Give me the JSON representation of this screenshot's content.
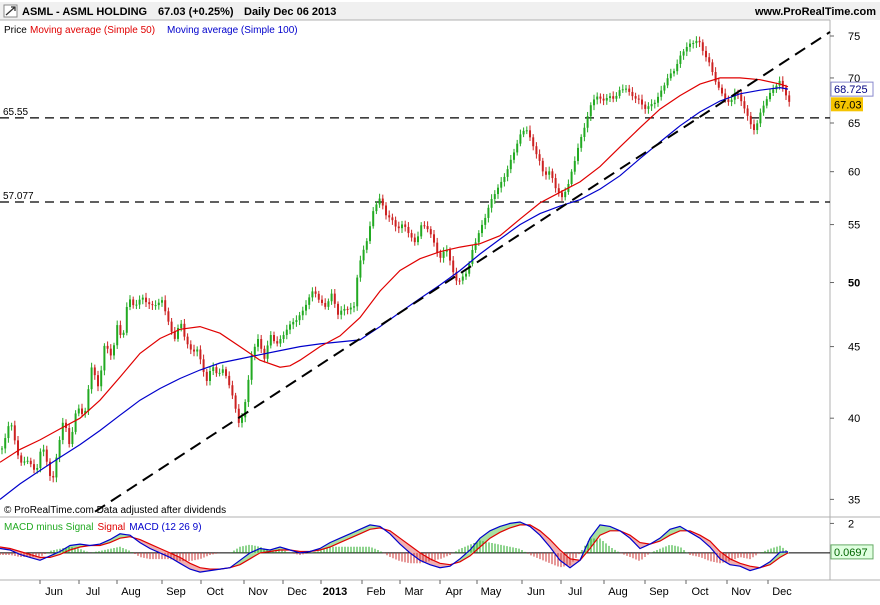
{
  "header": {
    "ticker": "ASML - ASML HOLDING",
    "quote": "67.03 (+0.25%)",
    "period": "Daily  Dec 06 2013",
    "site": "www.ProRealTime.com"
  },
  "legend": {
    "price": "Price",
    "ma50": "Moving average (Simple 50)",
    "ma100": "Moving average (Simple 100)"
  },
  "copyright": "© ProRealTime.com  Data adjusted after dividends",
  "macd_legend": {
    "hist": "MACD minus Signal",
    "signal": "Signal",
    "macd": "MACD (12 26 9)"
  },
  "colors": {
    "up": "#22aa22",
    "down": "#cc2222",
    "ma50": "#e00000",
    "ma100": "#0000cc",
    "trend": "#000000",
    "last_price_bg": "#f5c400",
    "macd_value_bg": "#e0ffe0"
  },
  "chart_data": {
    "type": "candlestick",
    "instrument": "ASML - ASML HOLDING",
    "timeframe": "Daily",
    "y_scale": "log",
    "ylim": [
      34,
      77
    ],
    "y_ticks": [
      35,
      40,
      45,
      50,
      55,
      60,
      65,
      70,
      75
    ],
    "y_ticks_bold": [
      50
    ],
    "x_month_labels": [
      "Jun",
      "Jul",
      "Aug",
      "Sep",
      "Oct",
      "Nov",
      "Dec",
      "2013",
      "Feb",
      "Mar",
      "Apr",
      "May",
      "Jun",
      "Jul",
      "Aug",
      "Sep",
      "Oct",
      "Nov",
      "Dec"
    ],
    "x_label_bold": "2013",
    "price_path": [
      [
        0,
        38.0
      ],
      [
        8,
        40.0
      ],
      [
        18,
        37.0
      ],
      [
        26,
        37.4
      ],
      [
        34,
        36.6
      ],
      [
        40,
        38.2
      ],
      [
        45,
        37.2
      ],
      [
        50,
        35.8
      ],
      [
        54,
        37.5
      ],
      [
        62,
        40.0
      ],
      [
        68,
        38.0
      ],
      [
        75,
        41.0
      ],
      [
        82,
        40.0
      ],
      [
        90,
        43.5
      ],
      [
        97,
        42.0
      ],
      [
        103,
        45.5
      ],
      [
        110,
        44.0
      ],
      [
        116,
        47.0
      ],
      [
        120,
        45.0
      ],
      [
        126,
        49.0
      ],
      [
        132,
        48.0
      ],
      [
        140,
        48.7
      ],
      [
        150,
        48.2
      ],
      [
        160,
        48.4
      ],
      [
        166,
        47.0
      ],
      [
        172,
        45.5
      ],
      [
        178,
        47.0
      ],
      [
        183,
        45.5
      ],
      [
        190,
        44.5
      ],
      [
        196,
        45.0
      ],
      [
        200,
        43.5
      ],
      [
        205,
        42.5
      ],
      [
        210,
        43.5
      ],
      [
        216,
        43.0
      ],
      [
        222,
        43.5
      ],
      [
        228,
        42.0
      ],
      [
        234,
        40.5
      ],
      [
        238,
        39.3
      ],
      [
        244,
        41.5
      ],
      [
        250,
        44.5
      ],
      [
        256,
        45.5
      ],
      [
        262,
        44.0
      ],
      [
        268,
        46.0
      ],
      [
        274,
        45.2
      ],
      [
        280,
        45.5
      ],
      [
        286,
        46.5
      ],
      [
        292,
        47.0
      ],
      [
        300,
        47.5
      ],
      [
        306,
        48.5
      ],
      [
        312,
        49.5
      ],
      [
        318,
        48.5
      ],
      [
        324,
        48.0
      ],
      [
        330,
        49.0
      ],
      [
        336,
        47.5
      ],
      [
        342,
        48.0
      ],
      [
        348,
        47.8
      ],
      [
        352,
        48.0
      ],
      [
        356,
        51.0
      ],
      [
        362,
        53.0
      ],
      [
        366,
        54.0
      ],
      [
        372,
        56.5
      ],
      [
        378,
        57.3
      ],
      [
        384,
        56.0
      ],
      [
        390,
        55.5
      ],
      [
        396,
        54.5
      ],
      [
        402,
        55.0
      ],
      [
        408,
        54.0
      ],
      [
        414,
        53.5
      ],
      [
        420,
        55.0
      ],
      [
        426,
        54.5
      ],
      [
        432,
        53.5
      ],
      [
        438,
        52.0
      ],
      [
        444,
        53.0
      ],
      [
        450,
        51.0
      ],
      [
        456,
        50.0
      ],
      [
        460,
        50.5
      ],
      [
        466,
        51.0
      ],
      [
        470,
        52.5
      ],
      [
        476,
        54.0
      ],
      [
        482,
        55.5
      ],
      [
        488,
        57.0
      ],
      [
        494,
        58.0
      ],
      [
        500,
        59.0
      ],
      [
        506,
        60.5
      ],
      [
        512,
        62.0
      ],
      [
        518,
        63.5
      ],
      [
        524,
        64.5
      ],
      [
        530,
        63.0
      ],
      [
        536,
        61.5
      ],
      [
        542,
        59.5
      ],
      [
        548,
        60.0
      ],
      [
        554,
        58.5
      ],
      [
        560,
        57.5
      ],
      [
        566,
        58.5
      ],
      [
        570,
        60.0
      ],
      [
        576,
        62.5
      ],
      [
        582,
        64.5
      ],
      [
        588,
        66.5
      ],
      [
        594,
        68.0
      ],
      [
        600,
        67.5
      ],
      [
        606,
        68.0
      ],
      [
        612,
        67.5
      ],
      [
        618,
        68.5
      ],
      [
        624,
        69.0
      ],
      [
        630,
        68.0
      ],
      [
        636,
        67.5
      ],
      [
        642,
        66.5
      ],
      [
        648,
        67.0
      ],
      [
        654,
        67.5
      ],
      [
        660,
        68.5
      ],
      [
        666,
        70.0
      ],
      [
        672,
        71.0
      ],
      [
        678,
        72.5
      ],
      [
        684,
        73.5
      ],
      [
        690,
        74.0
      ],
      [
        696,
        74.8
      ],
      [
        700,
        73.5
      ],
      [
        706,
        72.0
      ],
      [
        712,
        70.0
      ],
      [
        716,
        69.0
      ],
      [
        722,
        68.0
      ],
      [
        728,
        67.0
      ],
      [
        734,
        68.5
      ],
      [
        738,
        67.5
      ],
      [
        744,
        66.5
      ],
      [
        748,
        65.0
      ],
      [
        752,
        64.3
      ],
      [
        756,
        65.0
      ],
      [
        760,
        66.5
      ],
      [
        766,
        68.0
      ],
      [
        772,
        69.0
      ],
      [
        778,
        69.5
      ],
      [
        784,
        68.0
      ],
      [
        788,
        67.03
      ]
    ],
    "ma50": [
      [
        0,
        37.2
      ],
      [
        20,
        38.0
      ],
      [
        40,
        38.6
      ],
      [
        60,
        39.3
      ],
      [
        80,
        40.0
      ],
      [
        100,
        41.2
      ],
      [
        120,
        42.8
      ],
      [
        140,
        44.5
      ],
      [
        160,
        45.6
      ],
      [
        180,
        46.3
      ],
      [
        200,
        46.5
      ],
      [
        220,
        46.0
      ],
      [
        240,
        45.0
      ],
      [
        260,
        44.0
      ],
      [
        280,
        43.5
      ],
      [
        290,
        43.6
      ],
      [
        300,
        44.0
      ],
      [
        320,
        45.0
      ],
      [
        340,
        45.8
      ],
      [
        360,
        47.2
      ],
      [
        380,
        49.3
      ],
      [
        400,
        51.0
      ],
      [
        420,
        52.0
      ],
      [
        440,
        52.6
      ],
      [
        460,
        53.0
      ],
      [
        480,
        53.3
      ],
      [
        500,
        54.0
      ],
      [
        520,
        55.5
      ],
      [
        540,
        57.0
      ],
      [
        560,
        58.0
      ],
      [
        580,
        59.0
      ],
      [
        600,
        60.5
      ],
      [
        620,
        62.5
      ],
      [
        640,
        64.5
      ],
      [
        660,
        66.5
      ],
      [
        680,
        68.0
      ],
      [
        700,
        69.3
      ],
      [
        720,
        70.0
      ],
      [
        740,
        70.0
      ],
      [
        760,
        69.8
      ],
      [
        780,
        69.3
      ],
      [
        788,
        69.0
      ]
    ],
    "ma100": [
      [
        0,
        35.0
      ],
      [
        20,
        35.9
      ],
      [
        40,
        36.7
      ],
      [
        60,
        37.5
      ],
      [
        80,
        38.3
      ],
      [
        100,
        39.2
      ],
      [
        120,
        40.2
      ],
      [
        140,
        41.2
      ],
      [
        160,
        42.0
      ],
      [
        180,
        42.7
      ],
      [
        200,
        43.3
      ],
      [
        220,
        43.8
      ],
      [
        240,
        44.1
      ],
      [
        260,
        44.4
      ],
      [
        280,
        44.7
      ],
      [
        300,
        45.0
      ],
      [
        320,
        45.2
      ],
      [
        340,
        45.35
      ],
      [
        360,
        45.5
      ],
      [
        380,
        46.5
      ],
      [
        400,
        47.6
      ],
      [
        420,
        48.7
      ],
      [
        440,
        49.8
      ],
      [
        460,
        51.0
      ],
      [
        480,
        52.4
      ],
      [
        500,
        53.7
      ],
      [
        520,
        55.0
      ],
      [
        540,
        56.0
      ],
      [
        560,
        56.7
      ],
      [
        580,
        57.3
      ],
      [
        600,
        58.3
      ],
      [
        620,
        59.6
      ],
      [
        640,
        61.3
      ],
      [
        660,
        63.0
      ],
      [
        680,
        64.7
      ],
      [
        700,
        66.2
      ],
      [
        720,
        67.4
      ],
      [
        740,
        68.2
      ],
      [
        760,
        68.6
      ],
      [
        780,
        68.9
      ],
      [
        788,
        68.725
      ]
    ],
    "trendline": {
      "from": [
        95,
        34.3
      ],
      "to": [
        830,
        75.5
      ]
    },
    "support_levels": [
      65.55,
      57.077
    ],
    "last_price": 67.03,
    "ma100_last": 68.725,
    "macd": {
      "params": "12 26 9",
      "ylim": [
        -1.7,
        2.3
      ],
      "y_ticks": [
        2
      ],
      "last_value": 0.0697,
      "macd_path": [
        [
          0,
          0.3
        ],
        [
          10,
          0.2
        ],
        [
          20,
          -0.1
        ],
        [
          30,
          -0.3
        ],
        [
          40,
          -0.5
        ],
        [
          50,
          -0.2
        ],
        [
          60,
          0.1
        ],
        [
          70,
          0.5
        ],
        [
          80,
          0.6
        ],
        [
          90,
          0.5
        ],
        [
          100,
          0.6
        ],
        [
          110,
          0.9
        ],
        [
          120,
          1.3
        ],
        [
          130,
          1.2
        ],
        [
          140,
          0.7
        ],
        [
          150,
          0.3
        ],
        [
          160,
          0.0
        ],
        [
          170,
          -0.3
        ],
        [
          180,
          -0.7
        ],
        [
          190,
          -1.1
        ],
        [
          200,
          -1.3
        ],
        [
          210,
          -1.2
        ],
        [
          220,
          -1.1
        ],
        [
          230,
          -1.0
        ],
        [
          240,
          -0.5
        ],
        [
          250,
          0.0
        ],
        [
          260,
          0.3
        ],
        [
          270,
          0.2
        ],
        [
          280,
          0.4
        ],
        [
          290,
          0.2
        ],
        [
          300,
          0.0
        ],
        [
          310,
          0.1
        ],
        [
          320,
          0.3
        ],
        [
          330,
          0.7
        ],
        [
          340,
          1.0
        ],
        [
          350,
          1.3
        ],
        [
          360,
          1.6
        ],
        [
          370,
          1.9
        ],
        [
          380,
          1.8
        ],
        [
          390,
          1.3
        ],
        [
          400,
          0.6
        ],
        [
          410,
          0.0
        ],
        [
          420,
          -0.5
        ],
        [
          430,
          -0.8
        ],
        [
          440,
          -1.0
        ],
        [
          450,
          -0.9
        ],
        [
          460,
          -0.4
        ],
        [
          470,
          0.2
        ],
        [
          480,
          1.0
        ],
        [
          490,
          1.5
        ],
        [
          500,
          1.8
        ],
        [
          510,
          2.0
        ],
        [
          520,
          2.1
        ],
        [
          530,
          1.8
        ],
        [
          540,
          1.2
        ],
        [
          550,
          0.4
        ],
        [
          560,
          -0.5
        ],
        [
          570,
          -1.0
        ],
        [
          580,
          -0.5
        ],
        [
          590,
          1.0
        ],
        [
          600,
          1.9
        ],
        [
          610,
          1.8
        ],
        [
          620,
          1.5
        ],
        [
          630,
          1.0
        ],
        [
          640,
          0.3
        ],
        [
          650,
          0.6
        ],
        [
          660,
          1.0
        ],
        [
          670,
          1.6
        ],
        [
          680,
          1.8
        ],
        [
          690,
          1.4
        ],
        [
          700,
          1.0
        ],
        [
          710,
          0.4
        ],
        [
          720,
          -0.4
        ],
        [
          730,
          -0.8
        ],
        [
          740,
          -0.9
        ],
        [
          750,
          -1.2
        ],
        [
          760,
          -1.0
        ],
        [
          770,
          -0.6
        ],
        [
          780,
          0.05
        ],
        [
          788,
          0.07
        ]
      ],
      "signal_path": [
        [
          0,
          0.4
        ],
        [
          10,
          0.3
        ],
        [
          20,
          0.1
        ],
        [
          30,
          -0.1
        ],
        [
          40,
          -0.3
        ],
        [
          50,
          -0.3
        ],
        [
          60,
          -0.1
        ],
        [
          70,
          0.2
        ],
        [
          80,
          0.4
        ],
        [
          90,
          0.5
        ],
        [
          100,
          0.5
        ],
        [
          110,
          0.7
        ],
        [
          120,
          1.0
        ],
        [
          130,
          1.1
        ],
        [
          140,
          0.9
        ],
        [
          150,
          0.6
        ],
        [
          160,
          0.3
        ],
        [
          170,
          0.0
        ],
        [
          180,
          -0.3
        ],
        [
          190,
          -0.7
        ],
        [
          200,
          -1.0
        ],
        [
          210,
          -1.1
        ],
        [
          220,
          -1.1
        ],
        [
          230,
          -1.0
        ],
        [
          240,
          -0.8
        ],
        [
          250,
          -0.4
        ],
        [
          260,
          0.0
        ],
        [
          270,
          0.1
        ],
        [
          280,
          0.2
        ],
        [
          290,
          0.2
        ],
        [
          300,
          0.1
        ],
        [
          310,
          0.1
        ],
        [
          320,
          0.2
        ],
        [
          330,
          0.4
        ],
        [
          340,
          0.7
        ],
        [
          350,
          1.0
        ],
        [
          360,
          1.3
        ],
        [
          370,
          1.6
        ],
        [
          380,
          1.7
        ],
        [
          390,
          1.5
        ],
        [
          400,
          1.0
        ],
        [
          410,
          0.5
        ],
        [
          420,
          0.0
        ],
        [
          430,
          -0.4
        ],
        [
          440,
          -0.7
        ],
        [
          450,
          -0.8
        ],
        [
          460,
          -0.6
        ],
        [
          470,
          -0.2
        ],
        [
          480,
          0.4
        ],
        [
          490,
          1.0
        ],
        [
          500,
          1.4
        ],
        [
          510,
          1.7
        ],
        [
          520,
          1.9
        ],
        [
          530,
          1.9
        ],
        [
          540,
          1.5
        ],
        [
          550,
          0.9
        ],
        [
          560,
          0.2
        ],
        [
          570,
          -0.4
        ],
        [
          580,
          -0.5
        ],
        [
          590,
          0.3
        ],
        [
          600,
          1.2
        ],
        [
          610,
          1.5
        ],
        [
          620,
          1.5
        ],
        [
          630,
          1.2
        ],
        [
          640,
          0.7
        ],
        [
          650,
          0.6
        ],
        [
          660,
          0.8
        ],
        [
          670,
          1.2
        ],
        [
          680,
          1.5
        ],
        [
          690,
          1.5
        ],
        [
          700,
          1.2
        ],
        [
          710,
          0.8
        ],
        [
          720,
          0.1
        ],
        [
          730,
          -0.4
        ],
        [
          740,
          -0.7
        ],
        [
          750,
          -0.9
        ],
        [
          760,
          -1.0
        ],
        [
          770,
          -0.8
        ],
        [
          780,
          -0.3
        ],
        [
          788,
          0.0
        ]
      ]
    }
  }
}
